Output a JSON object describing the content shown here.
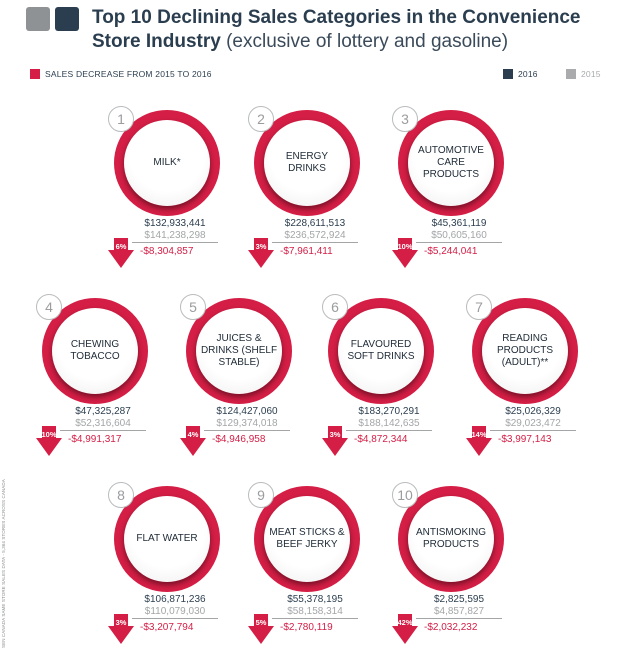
{
  "header": {
    "title_bold": "Top 10 Declining Sales Categories in the Convenience Store Industry",
    "title_light": "(exclusive of lottery and gasoline)"
  },
  "legend": {
    "decrease_label": "SALES DECREASE FROM 2015 TO 2016",
    "year_2016": "2016",
    "year_2015": "2015"
  },
  "colors": {
    "accent_red": "#d41e45",
    "dark_navy": "#2b3e4f",
    "grey_2015": "#a9abad"
  },
  "source_note": "SEN CANADA SAME STORE SALES DATA - 5,364 STORES ACROSS CANADA",
  "chart_data": {
    "type": "table",
    "columns": [
      "rank",
      "category",
      "sales_2016",
      "sales_2015",
      "change",
      "percent_decrease"
    ],
    "categories": [
      {
        "rank": "1",
        "name": "MILK*",
        "sales_2016": "$132,933,441",
        "sales_2015": "$141,238,298",
        "change": "-$8,304,857",
        "pct": "6%"
      },
      {
        "rank": "2",
        "name": "ENERGY DRINKS",
        "sales_2016": "$228,611,513",
        "sales_2015": "$236,572,924",
        "change": "-$7,961,411",
        "pct": "3%"
      },
      {
        "rank": "3",
        "name": "AUTOMOTIVE CARE PRODUCTS",
        "sales_2016": "$45,361,119",
        "sales_2015": "$50,605,160",
        "change": "-$5,244,041",
        "pct": "10%"
      },
      {
        "rank": "4",
        "name": "CHEWING TOBACCO",
        "sales_2016": "$47,325,287",
        "sales_2015": "$52,316,604",
        "change": "-$4,991,317",
        "pct": "10%"
      },
      {
        "rank": "5",
        "name": "JUICES & DRINKS (SHELF STABLE)",
        "sales_2016": "$124,427,060",
        "sales_2015": "$129,374,018",
        "change": "-$4,946,958",
        "pct": "4%"
      },
      {
        "rank": "6",
        "name": "FLAVOURED SOFT DRINKS",
        "sales_2016": "$183,270,291",
        "sales_2015": "$188,142,635",
        "change": "-$4,872,344",
        "pct": "3%"
      },
      {
        "rank": "7",
        "name": "READING PRODUCTS (ADULT)**",
        "sales_2016": "$25,026,329",
        "sales_2015": "$29,023,472",
        "change": "-$3,997,143",
        "pct": "14%"
      },
      {
        "rank": "8",
        "name": "FLAT WATER",
        "sales_2016": "$106,871,236",
        "sales_2015": "$110,079,030",
        "change": "-$3,207,794",
        "pct": "3%"
      },
      {
        "rank": "9",
        "name": "MEAT STICKS & BEEF JERKY",
        "sales_2016": "$55,378,195",
        "sales_2015": "$58,158,314",
        "change": "-$2,780,119",
        "pct": "5%"
      },
      {
        "rank": "10",
        "name": "ANTISMOKING PRODUCTS",
        "sales_2016": "$2,825,595",
        "sales_2015": "$4,857,827",
        "change": "-$2,032,232",
        "pct": "42%"
      }
    ]
  }
}
